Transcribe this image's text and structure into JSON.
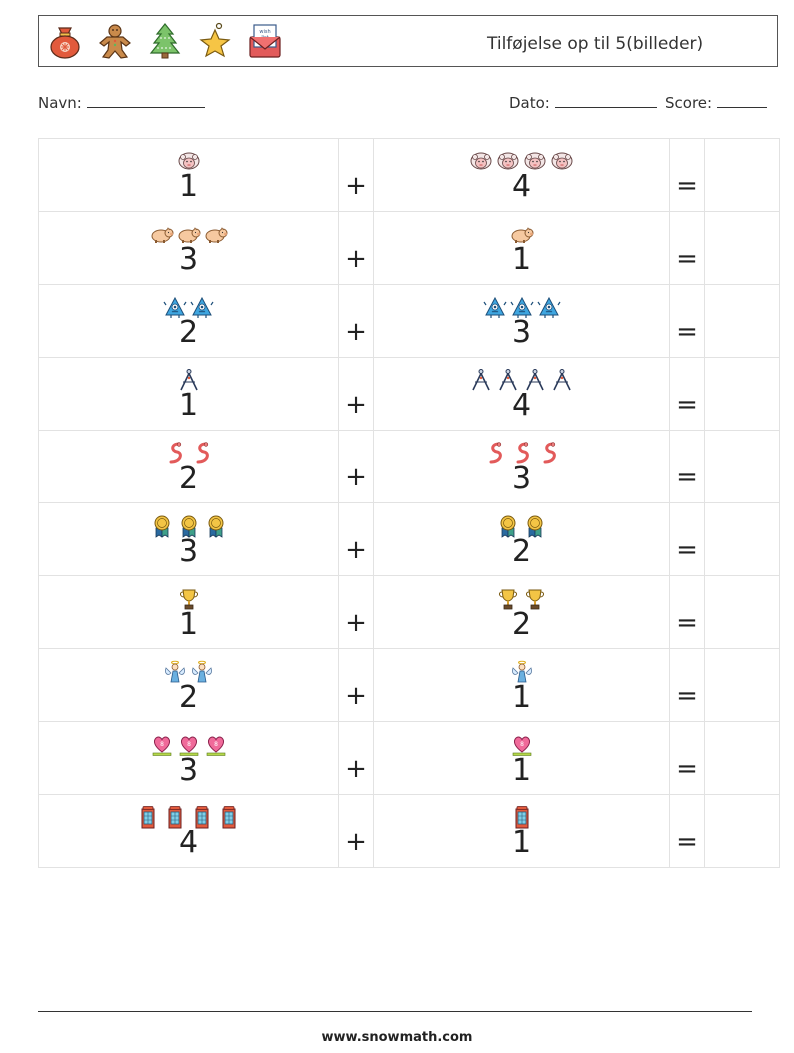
{
  "header": {
    "icons": [
      "santa-sack-icon",
      "gingerbread-man-icon",
      "christmas-tree-icon",
      "star-ornament-icon",
      "wish-list-letter-icon"
    ],
    "wishlist_text": "wish list",
    "title": "Tilføjelse op til 5(billeder)"
  },
  "meta": {
    "name_label": "Navn:",
    "date_label": "Dato:",
    "score_label": "Score:"
  },
  "plus_symbol": "+",
  "equals_symbol": "=",
  "rows": [
    {
      "picture": "sheep-icon",
      "a": "1",
      "b": "4"
    },
    {
      "picture": "pig-icon",
      "a": "3",
      "b": "1"
    },
    {
      "picture": "monster-icon",
      "a": "2",
      "b": "3"
    },
    {
      "picture": "compass-icon",
      "a": "1",
      "b": "4"
    },
    {
      "picture": "worm-icon",
      "a": "2",
      "b": "3"
    },
    {
      "picture": "medal-icon",
      "a": "3",
      "b": "2"
    },
    {
      "picture": "trophy-icon",
      "a": "1",
      "b": "2"
    },
    {
      "picture": "angel-icon",
      "a": "2",
      "b": "1"
    },
    {
      "picture": "heart-icon",
      "a": "3",
      "b": "1"
    },
    {
      "picture": "phone-booth-icon",
      "a": "4",
      "b": "1"
    }
  ],
  "footer": {
    "website": "www.snowmath.com"
  }
}
